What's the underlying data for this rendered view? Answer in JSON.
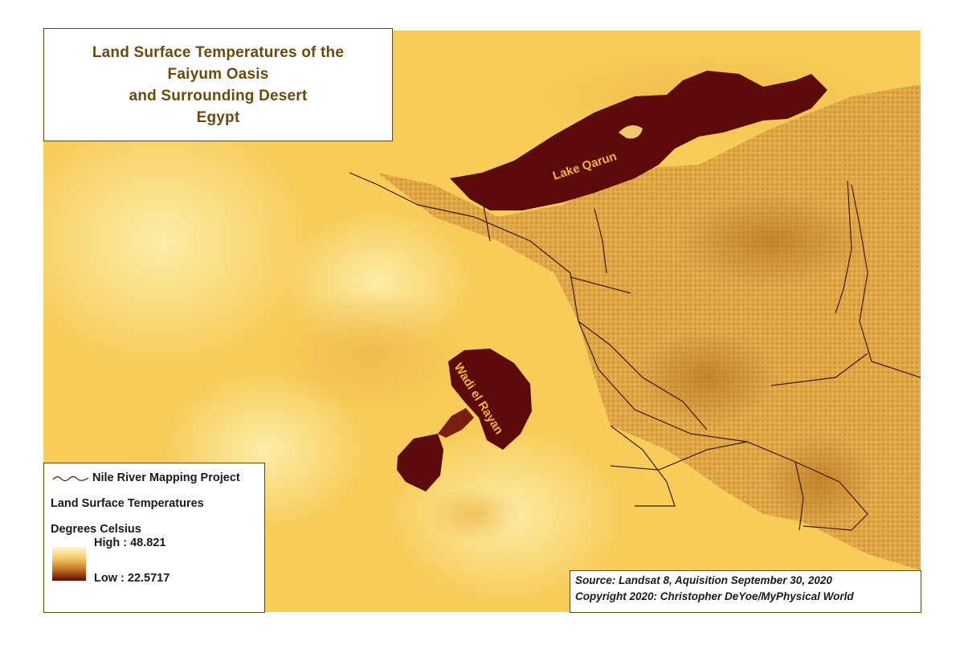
{
  "title": {
    "lines": [
      "Land Surface Temperatures of the",
      "Faiyum Oasis",
      "and Surrounding Desert",
      "Egypt"
    ]
  },
  "map": {
    "labels": {
      "lake_qarun": "Lake Qarun",
      "wadi_el_rayan": "Wadi el Rayan"
    },
    "colors": {
      "desert_hot": "#f7cf5c",
      "desert_hottest": "#fbe89a",
      "oasis_mid": "#d9a13f",
      "water_cool": "#5c0a0a",
      "river_line": "#3a1a0a"
    }
  },
  "legend": {
    "river_layer": "Nile River Mapping Project",
    "raster_title": "Land Surface Temperatures",
    "units": "Degrees Celsius",
    "high_label": "High : 48.821",
    "low_label": "Low : 22.5717",
    "high_value": 48.821,
    "low_value": 22.5717,
    "ramp_colors": [
      "#fff6cf",
      "#f7cf70",
      "#c77c20",
      "#5c0a0a"
    ]
  },
  "source": {
    "line1": "Source: Landsat 8, Aquisition September 30, 2020",
    "line2": "Copyright 2020: Christopher DeYoe/MyPhysical World"
  }
}
